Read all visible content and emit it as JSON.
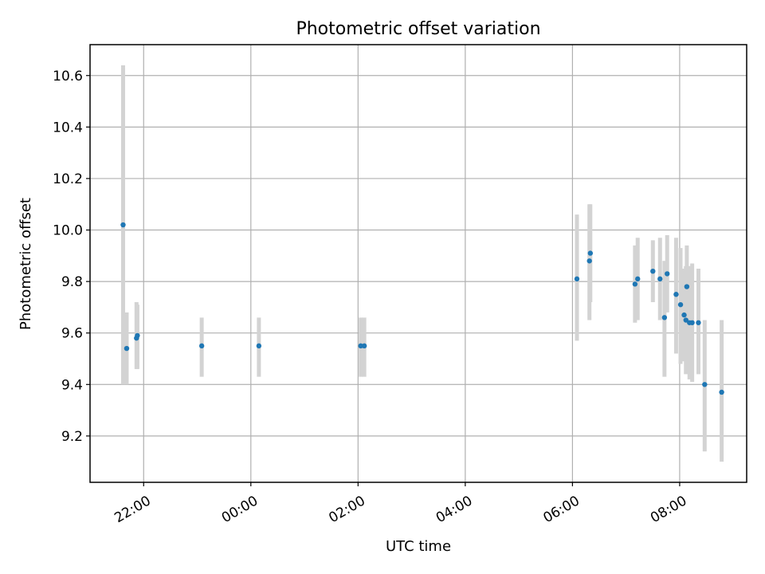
{
  "chart_data": {
    "type": "scatter",
    "title": "Photometric offset variation",
    "xlabel": "UTC time",
    "ylabel": "Photometric offset",
    "x_tick_labels": [
      "22:00",
      "00:00",
      "02:00",
      "04:00",
      "06:00",
      "08:00"
    ],
    "x_tick_times": [
      "2000-01-01T22:00",
      "2000-01-02T00:00",
      "2000-01-02T02:00",
      "2000-01-02T04:00",
      "2000-01-02T06:00",
      "2000-01-02T08:00"
    ],
    "xlim": [
      "2000-01-01T21:00",
      "2000-01-02T09:15"
    ],
    "y_tick_values": [
      9.2,
      9.4,
      9.6,
      9.8,
      10.0,
      10.2,
      10.4,
      10.6
    ],
    "y_tick_labels": [
      "9.2",
      "9.4",
      "9.6",
      "9.8",
      "10.0",
      "10.2",
      "10.4",
      "10.6"
    ],
    "ylim": [
      9.02,
      10.72
    ],
    "grid": true,
    "marker_color": "#1f77b4",
    "errorbar_color": "#d3d3d3",
    "series": [
      {
        "points": [
          {
            "t": "2000-01-01T21:37",
            "y": 10.02,
            "lo": 9.4,
            "hi": 10.64
          },
          {
            "t": "2000-01-01T21:41",
            "y": 9.54,
            "lo": 9.4,
            "hi": 9.68
          },
          {
            "t": "2000-01-01T21:52",
            "y": 9.58,
            "lo": 9.46,
            "hi": 9.72
          },
          {
            "t": "2000-01-01T21:53",
            "y": 9.59,
            "lo": 9.46,
            "hi": 9.71
          },
          {
            "t": "2000-01-01T23:05",
            "y": 9.55,
            "lo": 9.43,
            "hi": 9.66
          },
          {
            "t": "2000-01-02T00:09",
            "y": 9.55,
            "lo": 9.43,
            "hi": 9.66
          },
          {
            "t": "2000-01-02T02:03",
            "y": 9.55,
            "lo": 9.43,
            "hi": 9.66
          },
          {
            "t": "2000-01-02T02:07",
            "y": 9.55,
            "lo": 9.43,
            "hi": 9.66
          },
          {
            "t": "2000-01-02T06:05",
            "y": 9.81,
            "lo": 9.57,
            "hi": 10.06
          },
          {
            "t": "2000-01-02T06:19",
            "y": 9.88,
            "lo": 9.65,
            "hi": 10.1
          },
          {
            "t": "2000-01-02T06:20",
            "y": 9.91,
            "lo": 9.72,
            "hi": 10.1
          },
          {
            "t": "2000-01-02T07:10",
            "y": 9.79,
            "lo": 9.64,
            "hi": 9.94
          },
          {
            "t": "2000-01-02T07:13",
            "y": 9.81,
            "lo": 9.65,
            "hi": 9.97
          },
          {
            "t": "2000-01-02T07:30",
            "y": 9.84,
            "lo": 9.72,
            "hi": 9.96
          },
          {
            "t": "2000-01-02T07:38",
            "y": 9.81,
            "lo": 9.65,
            "hi": 9.97
          },
          {
            "t": "2000-01-02T07:43",
            "y": 9.66,
            "lo": 9.43,
            "hi": 9.88
          },
          {
            "t": "2000-01-02T07:46",
            "y": 9.83,
            "lo": 9.68,
            "hi": 9.98
          },
          {
            "t": "2000-01-02T07:56",
            "y": 9.75,
            "lo": 9.52,
            "hi": 9.97
          },
          {
            "t": "2000-01-02T08:01",
            "y": 9.71,
            "lo": 9.48,
            "hi": 9.93
          },
          {
            "t": "2000-01-02T08:05",
            "y": 9.67,
            "lo": 9.49,
            "hi": 9.85
          },
          {
            "t": "2000-01-02T08:08",
            "y": 9.78,
            "lo": 9.62,
            "hi": 9.94
          },
          {
            "t": "2000-01-02T08:07",
            "y": 9.65,
            "lo": 9.44,
            "hi": 9.86
          },
          {
            "t": "2000-01-02T08:11",
            "y": 9.64,
            "lo": 9.42,
            "hi": 9.86
          },
          {
            "t": "2000-01-02T08:14",
            "y": 9.64,
            "lo": 9.41,
            "hi": 9.87
          },
          {
            "t": "2000-01-02T08:21",
            "y": 9.64,
            "lo": 9.44,
            "hi": 9.85
          },
          {
            "t": "2000-01-02T08:28",
            "y": 9.4,
            "lo": 9.14,
            "hi": 9.65
          },
          {
            "t": "2000-01-02T08:47",
            "y": 9.37,
            "lo": 9.1,
            "hi": 9.65
          }
        ]
      }
    ]
  }
}
